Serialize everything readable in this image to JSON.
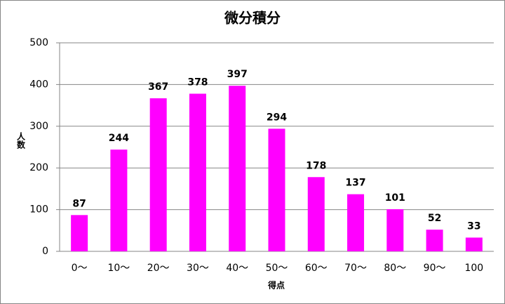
{
  "chart_data": {
    "type": "bar",
    "title": "微分積分",
    "ylabel": "人数",
    "xlabel": "得点",
    "categories": [
      "0～",
      "10～",
      "20～",
      "30～",
      "40～",
      "50～",
      "60～",
      "70～",
      "80～",
      "90～",
      "100"
    ],
    "values": [
      87,
      244,
      367,
      378,
      397,
      294,
      178,
      137,
      101,
      52,
      33
    ],
    "color": "#ff00ff",
    "ylim": [
      0,
      500
    ],
    "yticks": [
      0,
      100,
      200,
      300,
      400,
      500
    ],
    "grid": true
  }
}
